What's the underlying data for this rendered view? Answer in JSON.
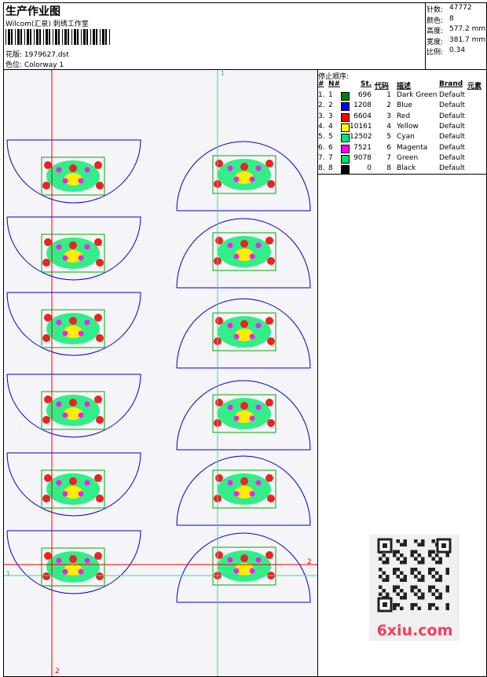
{
  "header": {
    "title": "生产作业图",
    "studio": "Wilcom(汇泉) 刺绣工作室",
    "design": "花版: 1979627.dst",
    "colorway": "色位: Colorway 1"
  },
  "stats": [
    {
      "label": "针数:",
      "value": "47772"
    },
    {
      "label": "颜色:",
      "value": "8"
    },
    {
      "label": "高度:",
      "value": "577.2 mm"
    },
    {
      "label": "宽度:",
      "value": "381.7 mm"
    },
    {
      "label": "比例:",
      "value": "0.34"
    }
  ],
  "stop_sequence": {
    "title": "停止顺序:",
    "columns": [
      "#",
      "N#",
      "St.",
      "代码",
      "描述",
      "Brand",
      "元素"
    ],
    "rows": [
      {
        "seq": "1.",
        "n": "1",
        "color": "#008000",
        "stitches": 696,
        "code": "1",
        "name": "Dark Green",
        "brand": "Default"
      },
      {
        "seq": "2.",
        "n": "2",
        "color": "#0000ff",
        "stitches": 1208,
        "code": "2",
        "name": "Blue",
        "brand": "Default"
      },
      {
        "seq": "3.",
        "n": "3",
        "color": "#ff0000",
        "stitches": 6604,
        "code": "3",
        "name": "Red",
        "brand": "Default"
      },
      {
        "seq": "4.",
        "n": "4",
        "color": "#ffff00",
        "stitches": 10161,
        "code": "4",
        "name": "Yellow",
        "brand": "Default"
      },
      {
        "seq": "5.",
        "n": "5",
        "color": "#00e080",
        "stitches": 12502,
        "code": "5",
        "name": "Cyan",
        "brand": "Default"
      },
      {
        "seq": "6.",
        "n": "6",
        "color": "#ff00ff",
        "stitches": 7521,
        "code": "6",
        "name": "Magenta",
        "brand": "Default"
      },
      {
        "seq": "7.",
        "n": "7",
        "color": "#00e060",
        "stitches": 9078,
        "code": "7",
        "name": "Green",
        "brand": "Default"
      },
      {
        "seq": "8.",
        "n": "8",
        "color": "#000000",
        "stitches": 0,
        "code": "8",
        "name": "Black",
        "brand": "Default"
      }
    ]
  },
  "guides": {
    "green_vertical": "1",
    "red_vertical": "2",
    "red_horizontal": "2",
    "green_horizontal": "1"
  },
  "watermark": "6xiu.com"
}
